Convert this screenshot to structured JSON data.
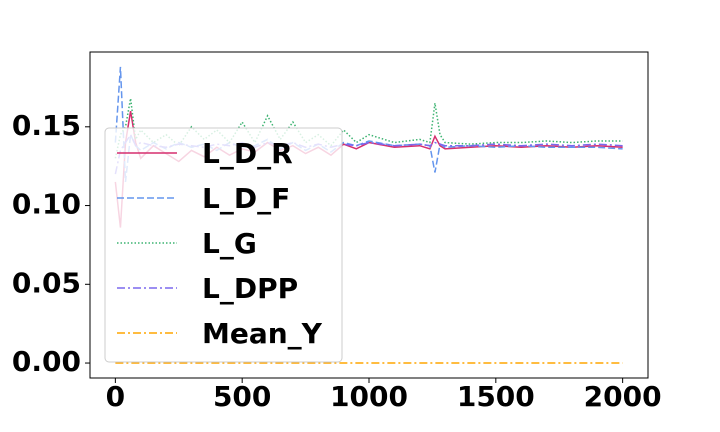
{
  "chart_data": {
    "type": "line",
    "x": [
      0,
      20,
      40,
      60,
      80,
      100,
      150,
      200,
      250,
      300,
      350,
      400,
      450,
      500,
      550,
      600,
      650,
      700,
      750,
      800,
      850,
      900,
      950,
      1000,
      1100,
      1200,
      1240,
      1260,
      1280,
      1300,
      1400,
      1500,
      1600,
      1700,
      1800,
      1900,
      2000
    ],
    "series": [
      {
        "name": "L_D_R",
        "color": "#d62f6e",
        "style": "solid",
        "values": [
          0.115,
          0.086,
          0.14,
          0.16,
          0.14,
          0.13,
          0.138,
          0.133,
          0.128,
          0.135,
          0.131,
          0.137,
          0.132,
          0.136,
          0.134,
          0.14,
          0.135,
          0.138,
          0.133,
          0.137,
          0.132,
          0.139,
          0.136,
          0.14,
          0.137,
          0.138,
          0.136,
          0.144,
          0.138,
          0.136,
          0.137,
          0.138,
          0.137,
          0.138,
          0.137,
          0.138,
          0.137
        ]
      },
      {
        "name": "L_D_F",
        "color": "#6495ed",
        "style": "dashed",
        "values": [
          0.14,
          0.188,
          0.115,
          0.145,
          0.138,
          0.135,
          0.14,
          0.136,
          0.14,
          0.137,
          0.139,
          0.135,
          0.14,
          0.137,
          0.138,
          0.142,
          0.136,
          0.14,
          0.135,
          0.139,
          0.134,
          0.14,
          0.138,
          0.141,
          0.138,
          0.139,
          0.138,
          0.121,
          0.139,
          0.137,
          0.138,
          0.137,
          0.138,
          0.137,
          0.137,
          0.137,
          0.136
        ]
      },
      {
        "name": "L_G",
        "color": "#3cb371",
        "style": "dotted",
        "values": [
          0.13,
          0.145,
          0.15,
          0.168,
          0.142,
          0.148,
          0.14,
          0.145,
          0.138,
          0.15,
          0.142,
          0.148,
          0.14,
          0.153,
          0.14,
          0.157,
          0.142,
          0.153,
          0.14,
          0.145,
          0.138,
          0.148,
          0.14,
          0.145,
          0.14,
          0.142,
          0.14,
          0.165,
          0.145,
          0.14,
          0.139,
          0.14,
          0.14,
          0.141,
          0.14,
          0.141,
          0.141
        ]
      },
      {
        "name": "L_DPP",
        "color": "#7b68ee",
        "style": "dashdot",
        "values": [
          0.12,
          0.135,
          0.14,
          0.145,
          0.138,
          0.14,
          0.138,
          0.137,
          0.139,
          0.138,
          0.137,
          0.139,
          0.138,
          0.14,
          0.137,
          0.14,
          0.138,
          0.14,
          0.137,
          0.139,
          0.137,
          0.139,
          0.138,
          0.14,
          0.138,
          0.139,
          0.138,
          0.14,
          0.139,
          0.138,
          0.138,
          0.139,
          0.138,
          0.139,
          0.138,
          0.139,
          0.138
        ]
      },
      {
        "name": "Mean_Y",
        "color": "#ffa500",
        "style": "dashdot",
        "values": [
          0,
          0,
          0,
          0,
          0,
          0,
          0,
          0,
          0,
          0,
          0,
          0,
          0,
          0,
          0,
          0,
          0,
          0,
          0,
          0,
          0,
          0,
          0,
          0,
          0,
          0,
          0,
          0,
          0,
          0,
          0,
          0,
          0,
          0,
          0,
          0,
          0
        ]
      }
    ],
    "xlim": [
      -100,
      2100
    ],
    "xticks": [
      0,
      500,
      1000,
      1500,
      2000
    ],
    "ylim": [
      -0.0095,
      0.1975
    ],
    "yticks": [
      {
        "value": 0,
        "label": "0.00"
      },
      {
        "value": 0.05,
        "label": "0.05"
      },
      {
        "value": 0.1,
        "label": "0.10"
      },
      {
        "value": 0.15,
        "label": "0.15"
      }
    ],
    "legend": "upper left"
  }
}
